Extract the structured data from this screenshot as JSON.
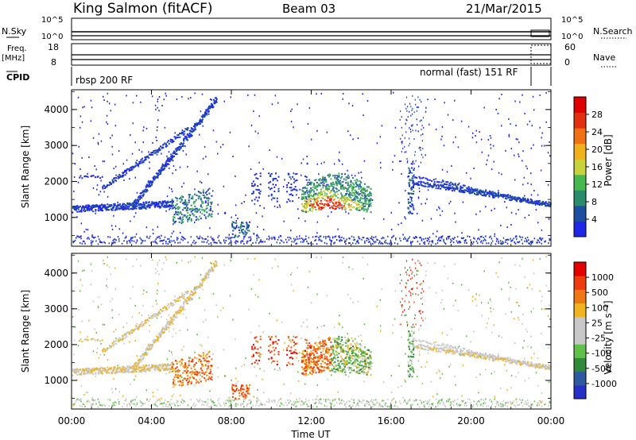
{
  "header": {
    "station": "King Salmon (fitACF)",
    "beam": "Beam 03",
    "date": "21/Mar/2015"
  },
  "side_panels": {
    "nsky_label": "N.Sky",
    "nsky_ticks": [
      "10^5",
      "10^0"
    ],
    "nsearch_label": "N.Search",
    "nsearch_ticks": [
      "10^5",
      "10^0"
    ],
    "freq_label_1": "Freq.",
    "freq_label_2": "[MHz]",
    "freq_ticks": [
      "18",
      "8"
    ],
    "nave_label": "Nave",
    "nave_ticks": [
      "60",
      "0"
    ],
    "cpid_label": "CPID",
    "cpid_left": "rbsp 200 RF",
    "cpid_right": "normal (fast) 151 RF"
  },
  "chart_data": [
    {
      "type": "heatmap",
      "name": "power",
      "ylabel": "Slant Range [km]",
      "ylim": [
        200,
        4550
      ],
      "yticks": [
        "4000",
        "3000",
        "2000",
        "1000"
      ],
      "colorbar_label": "Power [dB]",
      "colorbar_ticks": [
        "28",
        "24",
        "20",
        "16",
        "12",
        "8",
        "4"
      ],
      "colorbar_colors": [
        "#1f28e6",
        "#1c4fa0",
        "#2a8c6c",
        "#46b84e",
        "#c8d23c",
        "#f0b11a",
        "#f07014",
        "#e23010",
        "#e00000"
      ]
    },
    {
      "type": "heatmap",
      "name": "velocity",
      "ylabel": "Slant Range [km]",
      "ylim": [
        200,
        4550
      ],
      "yticks": [
        "4000",
        "3000",
        "2000",
        "1000"
      ],
      "colorbar_label": "Velocity [m s⁻¹]",
      "colorbar_ticks": [
        "1000",
        "500",
        "100",
        "25",
        "-25",
        "-100",
        "-500",
        "-1000"
      ],
      "colorbar_colors": [
        "#2430c8",
        "#2e5aa0",
        "#2f8a3a",
        "#5fc04a",
        "#c8c8c8",
        "#c8c8c8",
        "#f0b41e",
        "#f07814",
        "#ee3c10",
        "#e40000"
      ]
    }
  ],
  "xaxis": {
    "label": "Time UT",
    "ticks": [
      "00:00",
      "04:00",
      "08:00",
      "12:00",
      "16:00",
      "20:00",
      "00:00"
    ],
    "range_hours": [
      0,
      24
    ]
  }
}
